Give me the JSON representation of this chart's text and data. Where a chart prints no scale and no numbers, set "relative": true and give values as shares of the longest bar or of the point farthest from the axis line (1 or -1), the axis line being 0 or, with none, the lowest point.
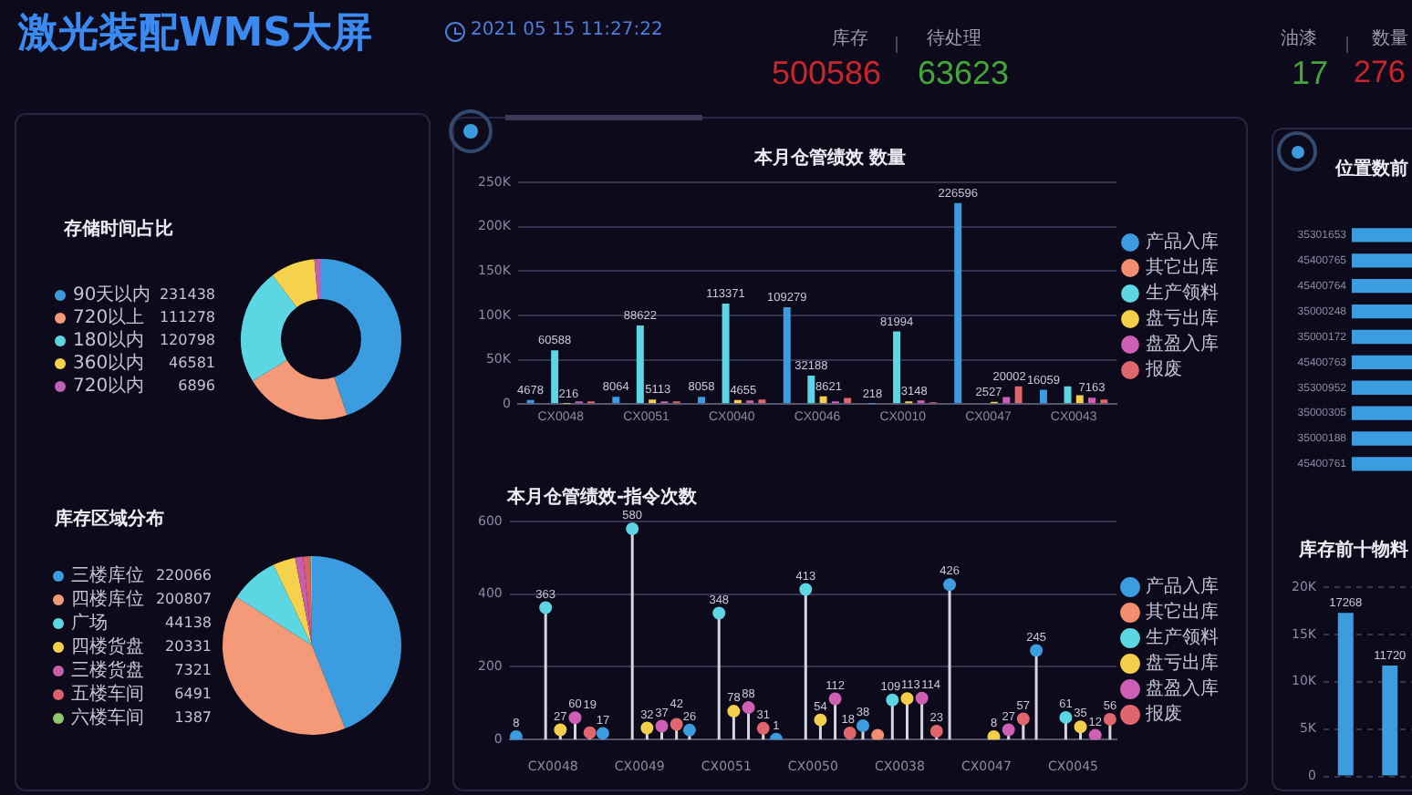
{
  "chart_data": [
    {
      "type": "other",
      "title": "激光装配WMS大屏",
      "annotations": [
        "2021 05 15 11:27:22",
        "库存",
        "500586",
        "待处理",
        "63623",
        "油漆",
        "17",
        "数量",
        "276"
      ]
    },
    {
      "type": "donut",
      "title": "存储时间占比",
      "categories": [
        "90天以内",
        "720以上",
        "180以内",
        "360以内",
        "720以内"
      ],
      "values": [
        231438,
        111278,
        120798,
        46581,
        6896
      ],
      "colors": [
        "#3b9de0",
        "#f59a78",
        "#5dd6e4",
        "#f6d24c",
        "#c25fb3"
      ],
      "legend": "left",
      "data_labels": true
    },
    {
      "type": "pie",
      "title": "库存区域分布",
      "categories": [
        "三楼库位",
        "四楼库位",
        "广场",
        "四楼货盘",
        "三楼货盘",
        "五楼车间",
        "六楼车间"
      ],
      "values": [
        220066,
        200807,
        44138,
        20331,
        7321,
        6491,
        1387
      ],
      "colors": [
        "#3b9de0",
        "#f59a78",
        "#5dd6e4",
        "#f6d24c",
        "#c85fa8",
        "#d9606a",
        "#8cc56a"
      ],
      "legend": "left",
      "data_labels": true
    },
    {
      "type": "bar",
      "title": "本月仓管绩效 数量",
      "categories": [
        "CX0048",
        "CX0051",
        "CX0040",
        "CX0046",
        "CX0010",
        "CX0047",
        "CX0043"
      ],
      "series": [
        {
          "name": "产品入库",
          "color": "#3b9de0",
          "values": [
            4678,
            8064,
            8058,
            109279,
            218,
            226596,
            16059
          ],
          "value_labels": [
            "4678",
            "8064",
            "8058",
            "109279",
            "218",
            "226596",
            "16059"
          ]
        },
        {
          "name": "其它出库",
          "color": "#f08e6f",
          "values": [
            null,
            null,
            null,
            null,
            null,
            null,
            null
          ]
        },
        {
          "name": "生产领料",
          "color": "#5dd6e4",
          "values": [
            60588,
            88622,
            113371,
            32188,
            81994,
            null,
            20000
          ],
          "value_labels": [
            "60588",
            "88622",
            "113371",
            "32188",
            "81994",
            null,
            null
          ]
        },
        {
          "name": "盘亏出库",
          "color": "#f6cf4a",
          "values": [
            216,
            5113,
            4655,
            8621,
            3148,
            2527,
            10000
          ],
          "value_labels": [
            "216",
            "5113",
            "4655",
            "8621",
            "3148",
            "2527",
            null
          ]
        },
        {
          "name": "盘盈入库",
          "color": "#cf5fb4",
          "values": [
            3000,
            3000,
            4000,
            3000,
            4000,
            8000,
            7163
          ],
          "value_labels": [
            null,
            null,
            null,
            null,
            null,
            null,
            "7163"
          ]
        },
        {
          "name": "报废",
          "color": "#e0666d",
          "values": [
            3000,
            3000,
            5000,
            7000,
            2000,
            20002,
            5000
          ],
          "value_labels": [
            null,
            null,
            null,
            null,
            null,
            "20002",
            null
          ]
        }
      ],
      "ylim": [
        0,
        250000
      ],
      "yticks": [
        0,
        {
          "value": 50000,
          "label": "50K"
        },
        {
          "value": 100000,
          "label": "100K"
        },
        {
          "value": 150000,
          "label": "150K"
        },
        {
          "value": 200000,
          "label": "200K"
        },
        {
          "value": 250000,
          "label": "250K"
        }
      ],
      "grid": "y",
      "legend": "right"
    },
    {
      "type": "lollipop",
      "title": "本月仓管绩效-指令次数",
      "categories": [
        "CX0048",
        "CX0049",
        "CX0051",
        "CX0050",
        "CX0038",
        "CX0047",
        "CX0045"
      ],
      "series": [
        {
          "name": "产品入库",
          "color": "#3b9de0",
          "values": [
            8,
            17,
            26,
            1,
            38,
            426,
            245
          ],
          "value_labels": [
            "8",
            "17",
            "26",
            "1",
            "38",
            "426",
            "245"
          ]
        },
        {
          "name": "其它出库",
          "color": "#f08e6f",
          "values": [
            null,
            null,
            null,
            null,
            12,
            null,
            null
          ]
        },
        {
          "name": "生产领料",
          "color": "#5dd6e4",
          "values": [
            363,
            580,
            348,
            413,
            109,
            null,
            61
          ],
          "value_labels": [
            "363",
            "580",
            "348",
            "413",
            "109",
            null,
            "61"
          ]
        },
        {
          "name": "盘亏出库",
          "color": "#f6cf4a",
          "values": [
            27,
            32,
            78,
            54,
            113,
            8,
            35
          ],
          "value_labels": [
            "27",
            "32",
            "78",
            "54",
            "113",
            "8",
            "35"
          ]
        },
        {
          "name": "盘盈入库",
          "color": "#cf5fb4",
          "values": [
            60,
            37,
            88,
            112,
            114,
            27,
            12
          ],
          "value_labels": [
            "60",
            "37",
            "88",
            "112",
            "114",
            "27",
            "12"
          ]
        },
        {
          "name": "报废",
          "color": "#e0666d",
          "values": [
            19,
            42,
            31,
            18,
            23,
            57,
            56
          ],
          "value_labels": [
            "19",
            "42",
            "31",
            "18",
            "23",
            "57",
            "56"
          ]
        }
      ],
      "ylim": [
        0,
        600
      ],
      "yticks": [
        0,
        200,
        400,
        600
      ],
      "grid": "y",
      "legend": "right",
      "marker": "circle"
    },
    {
      "type": "bar",
      "title": "位置数前",
      "orientation": "horizontal",
      "relative": true,
      "categories": [
        "35301653",
        "45400765",
        "45400764",
        "35000248",
        "35000172",
        "45400763",
        "35300952",
        "35000305",
        "35000188",
        "45400761"
      ],
      "values": [
        1,
        1,
        1,
        1,
        1,
        1,
        1,
        1,
        1,
        1
      ],
      "color": "#3b9de0"
    },
    {
      "type": "bar",
      "title": "库存前十物料",
      "categories": [
        null,
        null
      ],
      "values": [
        17268,
        11720
      ],
      "color": "#3b9de0",
      "ylim": [
        0,
        20000
      ],
      "yticks": [
        0,
        {
          "value": 5000,
          "label": "5K"
        },
        {
          "value": 10000,
          "label": "10K"
        },
        {
          "value": 15000,
          "label": "15K"
        },
        {
          "value": 20000,
          "label": "20K"
        }
      ],
      "grid": "y",
      "data_labels": true,
      "tick_labels": "y"
    }
  ]
}
